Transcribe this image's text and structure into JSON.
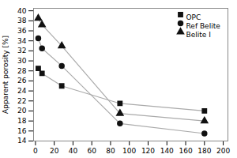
{
  "chart_data": {
    "type": "line",
    "ylabel": "Apparent porosity [%]",
    "x": [
      3,
      7,
      28,
      90,
      180
    ],
    "series": [
      {
        "name": "OPC",
        "values": [
          28.5,
          27.5,
          25.0,
          21.5,
          20.0
        ],
        "marker": "square",
        "color": "#111111"
      },
      {
        "name": "Ref Belite",
        "values": [
          34.5,
          32.5,
          29.0,
          17.5,
          15.5
        ],
        "marker": "circle",
        "color": "#111111"
      },
      {
        "name": "Belite I",
        "values": [
          38.5,
          37.2,
          33.0,
          19.5,
          18.0
        ],
        "marker": "triangle",
        "color": "#111111"
      }
    ],
    "color": "#aaaaaa",
    "xlim": [
      -2,
      205
    ],
    "ylim": [
      14,
      40.5
    ],
    "xticks": [
      0,
      20,
      40,
      60,
      80,
      100,
      120,
      140,
      160,
      180,
      200
    ],
    "yticks": [
      14,
      16,
      18,
      20,
      22,
      24,
      26,
      28,
      30,
      32,
      34,
      36,
      38,
      40
    ],
    "grid": false,
    "legend": "upper right"
  }
}
